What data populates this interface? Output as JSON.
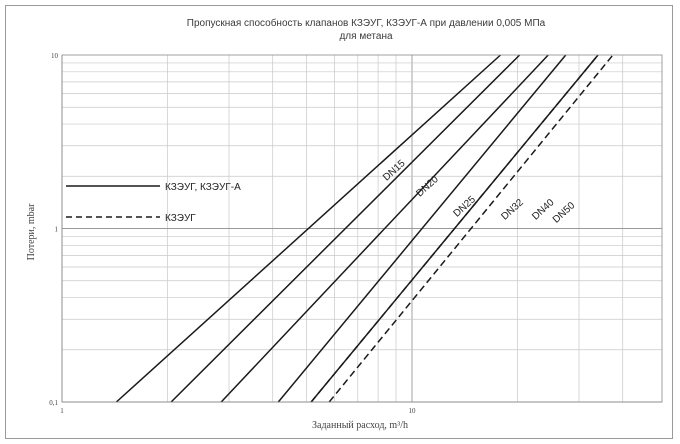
{
  "chart_data": {
    "type": "line",
    "title_line1": "Пропускная способность клапанов КЗЭУГ, КЗЭУГ-А при давлении 0,005 МПа",
    "title_line2": "для метана",
    "xlabel": "Заданный расход, m³/h",
    "ylabel": "Потери, mbar",
    "x_scale": "log",
    "y_scale": "log",
    "xlim": [
      1,
      40
    ],
    "ylim": [
      0.1,
      10
    ],
    "x_tick_labels": [
      "1",
      "10"
    ],
    "y_tick_labels": [
      "10",
      "1",
      "0,1"
    ],
    "grid": true,
    "legend": [
      {
        "label": "КЗЭУГ, КЗЭУГ-А",
        "style": "solid"
      },
      {
        "label": "КЗЭУГ",
        "style": "dashed"
      }
    ],
    "series": [
      {
        "name": "DN15",
        "style": "solid",
        "x": [
          1.43,
          17.9
        ],
        "y": [
          0.1,
          10
        ]
      },
      {
        "name": "DN20",
        "style": "solid",
        "x": [
          2.05,
          20.3
        ],
        "y": [
          0.1,
          10
        ]
      },
      {
        "name": "DN25",
        "style": "solid",
        "x": [
          2.85,
          24.5
        ],
        "y": [
          0.1,
          10
        ]
      },
      {
        "name": "DN32",
        "style": "solid",
        "x": [
          4.15,
          27.5
        ],
        "y": [
          0.1,
          10
        ]
      },
      {
        "name": "DN40",
        "style": "solid",
        "x": [
          5.15,
          34.0
        ],
        "y": [
          0.1,
          10
        ]
      },
      {
        "name": "DN40",
        "style": "dashed",
        "x": [
          5.15,
          34.0
        ],
        "y": [
          0.1,
          10
        ]
      },
      {
        "name": "DN50",
        "style": "dashed",
        "x": [
          5.8,
          37.5
        ],
        "y": [
          0.1,
          10
        ]
      }
    ],
    "series_labels": [
      {
        "text": "DN15",
        "x": 9.0,
        "y": 2.1
      },
      {
        "text": "DN20",
        "x": 11.2,
        "y": 1.7
      },
      {
        "text": "DN25",
        "x": 14.3,
        "y": 1.3
      },
      {
        "text": "DN32",
        "x": 19.6,
        "y": 1.25
      },
      {
        "text": "DN40",
        "x": 24.0,
        "y": 1.25
      },
      {
        "text": "DN50",
        "x": 27.5,
        "y": 1.2
      }
    ],
    "colors": {
      "line": "#1a1a1a",
      "major_grid": "#999999",
      "minor_grid": "#c8c8c8"
    }
  }
}
